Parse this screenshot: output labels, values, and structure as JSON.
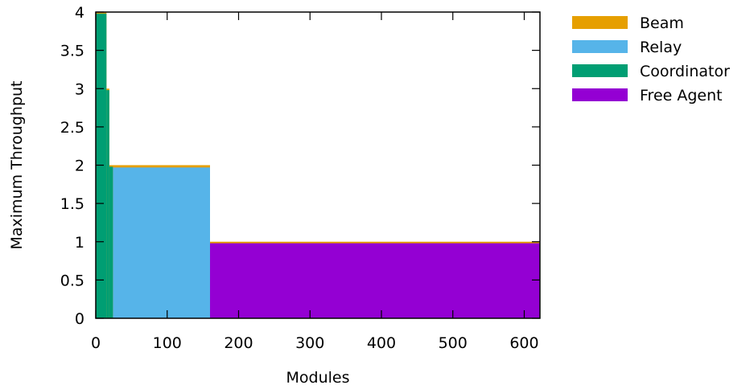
{
  "chart_data": {
    "type": "area",
    "title": "",
    "xlabel": "Modules",
    "ylabel": "Maximum Throughput",
    "xlim": [
      0,
      622
    ],
    "ylim": [
      0,
      4
    ],
    "x_ticks": [
      0,
      100,
      200,
      300,
      400,
      500,
      600
    ],
    "y_ticks": [
      0,
      0.5,
      1,
      1.5,
      2,
      2.5,
      3,
      3.5,
      4
    ],
    "x_tick_labels": [
      "0",
      "100",
      "200",
      "300",
      "400",
      "500",
      "600"
    ],
    "y_tick_labels": [
      "0",
      "0.5",
      "1",
      "1.5",
      "2",
      "2.5",
      "3",
      "3.5",
      "4"
    ],
    "grid": false,
    "legend_position": "right",
    "series": [
      {
        "name": "Beam",
        "color": "#e69f00",
        "regions": [
          {
            "x0": 0,
            "x1": 15,
            "y": 4
          },
          {
            "x0": 15,
            "x1": 19,
            "y": 3
          },
          {
            "x0": 19,
            "x1": 160,
            "y": 2
          },
          {
            "x0": 160,
            "x1": 622,
            "y": 1
          }
        ]
      },
      {
        "name": "Relay",
        "color": "#56b4e9",
        "regions": [
          {
            "x0": 24,
            "x1": 160,
            "y": 1.97
          }
        ]
      },
      {
        "name": "Coordinator",
        "color": "#009e73",
        "regions": [
          {
            "x0": 0,
            "x1": 15,
            "y": 3.98
          },
          {
            "x0": 15,
            "x1": 19,
            "y": 2.98
          },
          {
            "x0": 19,
            "x1": 24,
            "y": 1.98
          }
        ]
      },
      {
        "name": "Free Agent",
        "color": "#9400d3",
        "regions": [
          {
            "x0": 160,
            "x1": 622,
            "y": 0.98
          }
        ]
      }
    ]
  }
}
